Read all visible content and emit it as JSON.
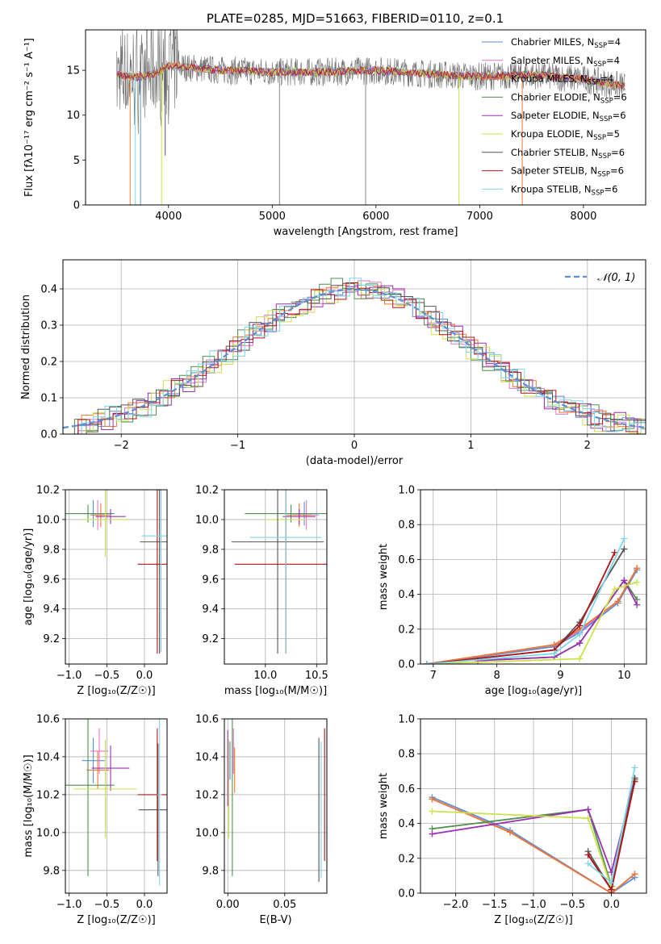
{
  "title": "PLATE=0285, MJD=51663, FIBERID=0110, z=0.1",
  "colors": {
    "chabrier_miles": "#5b8fd4",
    "salpeter_miles": "#e377c2",
    "kroupa_miles": "#ee7733",
    "chabrier_elodie": "#4f8f4f",
    "salpeter_elodie": "#9b30b5",
    "kroupa_elodie": "#cde24a",
    "chabrier_stelib": "#555555",
    "salpeter_stelib": "#b0141b",
    "kroupa_stelib": "#7fd6e6"
  },
  "chart_data": [
    {
      "id": "spectrum",
      "type": "line",
      "xlabel": "wavelength [Angstrom, rest frame]",
      "ylabel": "Flux [fλ10⁻¹⁷ erg cm⁻² s⁻¹ A⁻¹]",
      "xlim": [
        3200,
        8600
      ],
      "ylim": [
        0,
        19.5
      ],
      "xticks": [
        "4000",
        "5000",
        "6000",
        "7000",
        "8000"
      ],
      "yticks": [
        "0",
        "5",
        "10",
        "15"
      ],
      "grid": false,
      "legend_position": "upper-right",
      "legend": [
        {
          "label": "Chabrier MILES, N",
          "sub": "SSP",
          "tail": "=4"
        },
        {
          "label": "Salpeter MILES, N",
          "sub": "SSP",
          "tail": "=4"
        },
        {
          "label": "Kroupa MILES, N",
          "sub": "SSP",
          "tail": "=4"
        },
        {
          "label": "Chabrier ELODIE, N",
          "sub": "SSP",
          "tail": "=6"
        },
        {
          "label": "Salpeter ELODIE, N",
          "sub": "SSP",
          "tail": "=6"
        },
        {
          "label": "Kroupa ELODIE, N",
          "sub": "SSP",
          "tail": "=5"
        },
        {
          "label": "Chabrier STELIB, N",
          "sub": "SSP",
          "tail": "=6"
        },
        {
          "label": "Salpeter STELIB, N",
          "sub": "SSP",
          "tail": "=6"
        },
        {
          "label": "Kroupa STELIB, N",
          "sub": "SSP",
          "tail": "=6"
        }
      ],
      "continuum": {
        "x": [
          3500,
          3700,
          3900,
          4000,
          4200,
          4500,
          5000,
          5500,
          6000,
          6500,
          7000,
          7500,
          8000,
          8400
        ],
        "y": [
          14.5,
          14.2,
          14.8,
          15.5,
          15.3,
          15.0,
          14.8,
          14.8,
          15.0,
          14.6,
          14.3,
          14.5,
          14.0,
          13.2
        ]
      },
      "absorption_lines": [
        {
          "x": 3630,
          "y": 0,
          "color": "#ee7733"
        },
        {
          "x": 3680,
          "y": 0,
          "color": "#7fd6e6"
        },
        {
          "x": 3730,
          "y": 0,
          "color": "#5b8fd4"
        },
        {
          "x": 3933,
          "y": 0,
          "color": "#cde24a"
        },
        {
          "x": 3968,
          "y": 5.5,
          "color": "#555555"
        },
        {
          "x": 5070,
          "y": 0,
          "color": "#888888"
        },
        {
          "x": 5900,
          "y": 0,
          "color": "#888888"
        },
        {
          "x": 6800,
          "y": 0,
          "color": "#cde24a"
        },
        {
          "x": 7410,
          "y": 0,
          "color": "#ee7733"
        }
      ]
    },
    {
      "id": "residuals",
      "type": "bar",
      "xlabel": "(data-model)/error",
      "ylabel": "Normed distribution",
      "xlim": [
        -2.5,
        2.5
      ],
      "ylim": [
        0,
        0.48
      ],
      "xticks": [
        "−2",
        "−1",
        "0",
        "1",
        "2"
      ],
      "yticks": [
        "0.0",
        "0.1",
        "0.2",
        "0.3",
        "0.4"
      ],
      "grid": true,
      "legend_position": "upper-right",
      "legend": [
        {
          "label": "𝒩(0, 1)"
        }
      ],
      "gaussian": {
        "mean": 0,
        "sigma": 1
      },
      "bin_width": 0.1,
      "series_jitter": [
        0.02,
        0.03,
        0.025,
        0.035,
        0.03,
        0.04,
        0.03,
        0.025,
        0.035
      ]
    },
    {
      "id": "age-vs-z",
      "type": "scatter",
      "xlabel": "Z [log₁₀(Z/Z☉)]",
      "ylabel": "age  [log₁₀(age/yr)]",
      "xlim": [
        -1.05,
        0.3
      ],
      "ylim": [
        9.03,
        10.2
      ],
      "xticks": [
        "−1.0",
        "−0.5",
        "0.0"
      ],
      "yticks": [
        "9.2",
        "9.4",
        "9.6",
        "9.8",
        "10.0",
        "10.2"
      ],
      "grid": true,
      "points": [
        {
          "x": -0.68,
          "y": 10.04,
          "xerr": 0.15,
          "yerr": 0.09,
          "color": "#5b8fd4"
        },
        {
          "x": -0.62,
          "y": 10.03,
          "xerr": 0.1,
          "yerr": 0.1,
          "color": "#e377c2"
        },
        {
          "x": -0.58,
          "y": 10.03,
          "xerr": 0.12,
          "yerr": 0.08,
          "color": "#ee7733"
        },
        {
          "x": -0.75,
          "y": 10.04,
          "xerr": 0.35,
          "yerr": 0.06,
          "color": "#4f8f4f"
        },
        {
          "x": -0.45,
          "y": 10.02,
          "xerr": 0.2,
          "yerr": 0.05,
          "color": "#9b30b5"
        },
        {
          "x": -0.52,
          "y": 10.0,
          "xerr": 0.3,
          "yerr": 0.25,
          "color": "#cde24a"
        },
        {
          "x": 0.2,
          "y": 9.85,
          "xerr": 0.26,
          "yerr": 0.75,
          "color": "#555555"
        },
        {
          "x": 0.17,
          "y": 9.7,
          "xerr": 0.26,
          "yerr": 0.6,
          "color": "#b0141b"
        },
        {
          "x": 0.22,
          "y": 9.89,
          "xerr": 0.26,
          "yerr": 0.78,
          "color": "#7fd6e6"
        }
      ]
    },
    {
      "id": "age-vs-mass",
      "type": "scatter",
      "xlabel": "mass [log₁₀(M/M☉)]",
      "ylabel": "",
      "xlim": [
        9.6,
        10.6
      ],
      "ylim": [
        9.03,
        10.2
      ],
      "xticks": [
        "10.0",
        "10.5"
      ],
      "yticks": [
        "9.2",
        "9.4",
        "9.6",
        "9.8",
        "10.0",
        "10.2"
      ],
      "grid": true,
      "points": [
        {
          "x": 10.38,
          "y": 10.04,
          "xerr": 0.12,
          "yerr": 0.08,
          "color": "#5b8fd4"
        },
        {
          "x": 10.4,
          "y": 10.03,
          "xerr": 0.12,
          "yerr": 0.1,
          "color": "#e377c2"
        },
        {
          "x": 10.33,
          "y": 10.03,
          "xerr": 0.12,
          "yerr": 0.08,
          "color": "#ee7733"
        },
        {
          "x": 10.25,
          "y": 10.04,
          "xerr": 0.45,
          "yerr": 0.06,
          "color": "#4f8f4f"
        },
        {
          "x": 10.33,
          "y": 10.02,
          "xerr": 0.16,
          "yerr": 0.05,
          "color": "#9b30b5"
        },
        {
          "x": 10.2,
          "y": 10.0,
          "xerr": 0.2,
          "yerr": 0.25,
          "color": "#cde24a"
        },
        {
          "x": 10.12,
          "y": 9.85,
          "xerr": 0.45,
          "yerr": 0.75,
          "color": "#555555"
        },
        {
          "x": 10.2,
          "y": 9.7,
          "xerr": 0.5,
          "yerr": 0.6,
          "color": "#b0141b"
        },
        {
          "x": 10.2,
          "y": 9.88,
          "xerr": 0.35,
          "yerr": 0.78,
          "color": "#7fd6e6"
        }
      ]
    },
    {
      "id": "mass-weight-vs-age",
      "type": "line",
      "xlabel": "age  [log₁₀(age/yr)]",
      "ylabel": "mass weight",
      "xlim": [
        6.8,
        10.35
      ],
      "ylim": [
        0,
        1
      ],
      "xticks": [
        "7",
        "8",
        "9",
        "10"
      ],
      "yticks": [
        "0.0",
        "0.2",
        "0.4",
        "0.6",
        "0.8",
        "1.0"
      ],
      "grid": true,
      "series": [
        {
          "color": "#5b8fd4",
          "x": [
            6.9,
            8.9,
            9.3,
            9.9,
            10.2
          ],
          "y": [
            0.0,
            0.1,
            0.18,
            0.35,
            0.54
          ]
        },
        {
          "color": "#e377c2",
          "x": [
            6.9,
            8.9,
            9.3,
            9.9,
            10.2
          ],
          "y": [
            0.0,
            0.11,
            0.19,
            0.36,
            0.55
          ]
        },
        {
          "color": "#ee7733",
          "x": [
            6.9,
            8.9,
            9.3,
            9.9,
            10.2
          ],
          "y": [
            0.0,
            0.11,
            0.2,
            0.36,
            0.55
          ]
        },
        {
          "color": "#4f8f4f",
          "x": [
            7.7,
            8.9,
            9.3,
            10.0,
            10.2
          ],
          "y": [
            0.02,
            0.04,
            0.12,
            0.48,
            0.37
          ]
        },
        {
          "color": "#9b30b5",
          "x": [
            7.7,
            8.9,
            9.3,
            10.0,
            10.2
          ],
          "y": [
            0.02,
            0.04,
            0.12,
            0.48,
            0.34
          ]
        },
        {
          "color": "#cde24a",
          "x": [
            6.9,
            9.3,
            9.85,
            10.2
          ],
          "y": [
            0.0,
            0.03,
            0.43,
            0.47
          ]
        },
        {
          "color": "#555555",
          "x": [
            6.9,
            8.9,
            9.3,
            10.0
          ],
          "y": [
            0.0,
            0.08,
            0.24,
            0.66
          ]
        },
        {
          "color": "#b0141b",
          "x": [
            6.9,
            8.9,
            9.3,
            9.85
          ],
          "y": [
            0.0,
            0.08,
            0.22,
            0.64
          ]
        },
        {
          "color": "#7fd6e6",
          "x": [
            6.9,
            8.9,
            9.3,
            10.0
          ],
          "y": [
            0.0,
            0.06,
            0.17,
            0.72
          ]
        }
      ]
    },
    {
      "id": "mass-vs-z",
      "type": "scatter",
      "xlabel": "Z [log₁₀(Z/Z☉)]",
      "ylabel": "mass [log₁₀(M/M☉)]",
      "xlim": [
        -1.05,
        0.3
      ],
      "ylim": [
        9.68,
        10.6
      ],
      "xticks": [
        "−1.0",
        "−0.5",
        "0.0"
      ],
      "yticks": [
        "9.8",
        "10.0",
        "10.2",
        "10.4",
        "10.6"
      ],
      "grid": true,
      "points": [
        {
          "x": -0.68,
          "y": 10.38,
          "xerr": 0.15,
          "yerr": 0.12,
          "color": "#5b8fd4"
        },
        {
          "x": -0.6,
          "y": 10.43,
          "xerr": 0.12,
          "yerr": 0.12,
          "color": "#e377c2"
        },
        {
          "x": -0.62,
          "y": 10.33,
          "xerr": 0.15,
          "yerr": 0.1,
          "color": "#ee7733"
        },
        {
          "x": -0.75,
          "y": 10.25,
          "xerr": 0.35,
          "yerr": 0.48,
          "color": "#4f8f4f"
        },
        {
          "x": -0.45,
          "y": 10.34,
          "xerr": 0.25,
          "yerr": 0.12,
          "color": "#9b30b5"
        },
        {
          "x": -0.52,
          "y": 10.23,
          "xerr": 0.42,
          "yerr": 0.26,
          "color": "#cde24a"
        },
        {
          "x": 0.18,
          "y": 10.12,
          "xerr": 0.26,
          "yerr": 0.35,
          "color": "#555555"
        },
        {
          "x": 0.17,
          "y": 10.2,
          "xerr": 0.26,
          "yerr": 0.35,
          "color": "#b0141b"
        },
        {
          "x": 0.2,
          "y": 10.2,
          "xerr": 0.03,
          "yerr": 0.48,
          "color": "#7fd6e6"
        }
      ]
    },
    {
      "id": "mass-vs-ebv",
      "type": "scatter",
      "xlabel": "E(B-V)",
      "ylabel": "",
      "xlim": [
        -0.003,
        0.087
      ],
      "ylim": [
        9.68,
        10.6
      ],
      "xticks": [
        "0.00",
        "0.05"
      ],
      "yticks": [
        "9.8",
        "10.0",
        "10.2",
        "10.4",
        "10.6"
      ],
      "grid": true,
      "points": [
        {
          "x": 0.002,
          "y": 10.38,
          "xerr": 0,
          "yerr": 0.1,
          "color": "#5b8fd4"
        },
        {
          "x": 0.005,
          "y": 10.43,
          "xerr": 0,
          "yerr": 0.12,
          "color": "#e377c2"
        },
        {
          "x": 0.006,
          "y": 10.33,
          "xerr": 0,
          "yerr": 0.12,
          "color": "#ee7733"
        },
        {
          "x": 0.004,
          "y": 10.25,
          "xerr": 0,
          "yerr": 0.48,
          "color": "#4f8f4f"
        },
        {
          "x": 0.0,
          "y": 10.34,
          "xerr": 0,
          "yerr": 0.2,
          "color": "#9b30b5"
        },
        {
          "x": 0.001,
          "y": 10.23,
          "xerr": 0,
          "yerr": 0.26,
          "color": "#cde24a"
        },
        {
          "x": 0.08,
          "y": 10.12,
          "xerr": 0,
          "yerr": 0.38,
          "color": "#555555"
        },
        {
          "x": 0.085,
          "y": 10.2,
          "xerr": 0,
          "yerr": 0.35,
          "color": "#b0141b"
        },
        {
          "x": 0.082,
          "y": 10.12,
          "xerr": 0,
          "yerr": 0.36,
          "color": "#7fd6e6"
        }
      ]
    },
    {
      "id": "mass-weight-vs-z",
      "type": "line",
      "xlabel": "Z [log₁₀(Z/Z☉)]",
      "ylabel": "mass weight",
      "xlim": [
        -2.45,
        0.45
      ],
      "ylim": [
        0,
        1
      ],
      "xticks": [
        "−2.0",
        "−1.5",
        "−1.0",
        "−0.5",
        "0.0"
      ],
      "yticks": [
        "0.0",
        "0.2",
        "0.4",
        "0.6",
        "0.8",
        "1.0"
      ],
      "grid": true,
      "series": [
        {
          "color": "#5b8fd4",
          "x": [
            -2.3,
            -1.3,
            0.0,
            0.3
          ],
          "y": [
            0.55,
            0.36,
            0.0,
            0.09
          ]
        },
        {
          "color": "#e377c2",
          "x": [
            -2.3,
            -1.3,
            0.0,
            0.3
          ],
          "y": [
            0.54,
            0.35,
            0.0,
            0.11
          ]
        },
        {
          "color": "#ee7733",
          "x": [
            -2.3,
            -1.3,
            0.0,
            0.3
          ],
          "y": [
            0.54,
            0.35,
            0.0,
            0.11
          ]
        },
        {
          "color": "#4f8f4f",
          "x": [
            -2.3,
            -0.3,
            0.0,
            0.3
          ],
          "y": [
            0.37,
            0.48,
            0.04,
            0.65
          ]
        },
        {
          "color": "#9b30b5",
          "x": [
            -2.3,
            -0.3,
            0.0,
            0.3
          ],
          "y": [
            0.34,
            0.48,
            0.12,
            0.66
          ]
        },
        {
          "color": "#cde24a",
          "x": [
            -2.3,
            -0.3,
            0.0,
            0.3
          ],
          "y": [
            0.47,
            0.43,
            0.03,
            0.66
          ]
        },
        {
          "color": "#555555",
          "x": [
            -0.3,
            0.0,
            0.3
          ],
          "y": [
            0.24,
            0.02,
            0.66
          ]
        },
        {
          "color": "#b0141b",
          "x": [
            -0.3,
            0.0,
            0.3
          ],
          "y": [
            0.22,
            0.02,
            0.64
          ]
        },
        {
          "color": "#7fd6e6",
          "x": [
            -0.3,
            0.0,
            0.3
          ],
          "y": [
            0.17,
            0.06,
            0.72
          ]
        }
      ]
    }
  ]
}
